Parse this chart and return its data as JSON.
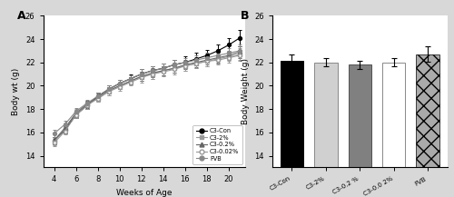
{
  "panel_A": {
    "weeks": [
      4,
      5,
      6,
      7,
      8,
      9,
      10,
      11,
      12,
      13,
      14,
      15,
      16,
      17,
      18,
      19,
      20,
      21
    ],
    "C3_Con": [
      15.3,
      16.2,
      17.5,
      18.3,
      19.1,
      19.7,
      20.2,
      20.6,
      21.0,
      21.3,
      21.5,
      21.8,
      22.0,
      22.3,
      22.6,
      23.0,
      23.5,
      24.1
    ],
    "C3_2pct": [
      15.2,
      16.3,
      17.7,
      18.4,
      18.9,
      19.5,
      20.0,
      20.4,
      20.8,
      21.0,
      21.3,
      21.5,
      21.7,
      21.9,
      22.1,
      22.3,
      22.5,
      22.7
    ],
    "C3_02pct": [
      15.3,
      16.4,
      17.6,
      18.4,
      19.0,
      19.6,
      20.0,
      20.4,
      20.8,
      21.1,
      21.3,
      21.5,
      21.8,
      22.0,
      22.2,
      22.4,
      22.6,
      22.9
    ],
    "C3_002pct": [
      15.1,
      16.1,
      17.5,
      18.3,
      18.9,
      19.5,
      19.9,
      20.3,
      20.7,
      21.0,
      21.2,
      21.4,
      21.7,
      21.9,
      22.1,
      22.2,
      22.4,
      22.6
    ],
    "FVB": [
      15.9,
      16.7,
      17.8,
      18.5,
      19.1,
      19.7,
      20.2,
      20.6,
      21.0,
      21.3,
      21.5,
      21.8,
      22.0,
      22.2,
      22.4,
      22.6,
      22.8,
      23.0
    ],
    "C3_Con_err": [
      0.3,
      0.3,
      0.3,
      0.3,
      0.3,
      0.3,
      0.3,
      0.4,
      0.4,
      0.4,
      0.4,
      0.4,
      0.5,
      0.5,
      0.5,
      0.5,
      0.6,
      0.7
    ],
    "C3_2pct_err": [
      0.3,
      0.3,
      0.3,
      0.3,
      0.3,
      0.3,
      0.3,
      0.3,
      0.4,
      0.4,
      0.4,
      0.4,
      0.4,
      0.4,
      0.4,
      0.4,
      0.4,
      0.5
    ],
    "C3_02pct_err": [
      0.3,
      0.3,
      0.3,
      0.3,
      0.3,
      0.3,
      0.3,
      0.3,
      0.4,
      0.4,
      0.4,
      0.4,
      0.4,
      0.4,
      0.4,
      0.4,
      0.4,
      0.5
    ],
    "C3_002pct_err": [
      0.3,
      0.3,
      0.3,
      0.3,
      0.3,
      0.3,
      0.3,
      0.3,
      0.4,
      0.4,
      0.4,
      0.4,
      0.4,
      0.4,
      0.4,
      0.4,
      0.4,
      0.5
    ],
    "FVB_err": [
      0.3,
      0.3,
      0.3,
      0.3,
      0.3,
      0.3,
      0.3,
      0.3,
      0.4,
      0.4,
      0.4,
      0.4,
      0.4,
      0.4,
      0.4,
      0.4,
      0.4,
      0.5
    ],
    "xlabel": "Weeks of Age",
    "ylabel": "Body wt (g)",
    "ylim": [
      13,
      26
    ],
    "yticks": [
      14,
      16,
      18,
      20,
      22,
      24,
      26
    ],
    "xticks": [
      4,
      6,
      8,
      10,
      12,
      14,
      16,
      18,
      20
    ],
    "panel_label": "A"
  },
  "panel_B": {
    "categories": [
      "C3-Con",
      "C3-2%",
      "C3-0.2 %",
      "C3-0.0 2%",
      "FVB"
    ],
    "values": [
      22.1,
      22.0,
      21.8,
      22.0,
      22.7
    ],
    "errors": [
      0.55,
      0.35,
      0.35,
      0.35,
      0.65
    ],
    "xlabel": "",
    "ylabel": "Body Weight (g)",
    "ylim": [
      13,
      26
    ],
    "yticks": [
      14,
      16,
      18,
      20,
      22,
      24,
      26
    ],
    "panel_label": "B"
  },
  "figure_bg": "#d8d8d8",
  "axes_bg": "#ffffff"
}
